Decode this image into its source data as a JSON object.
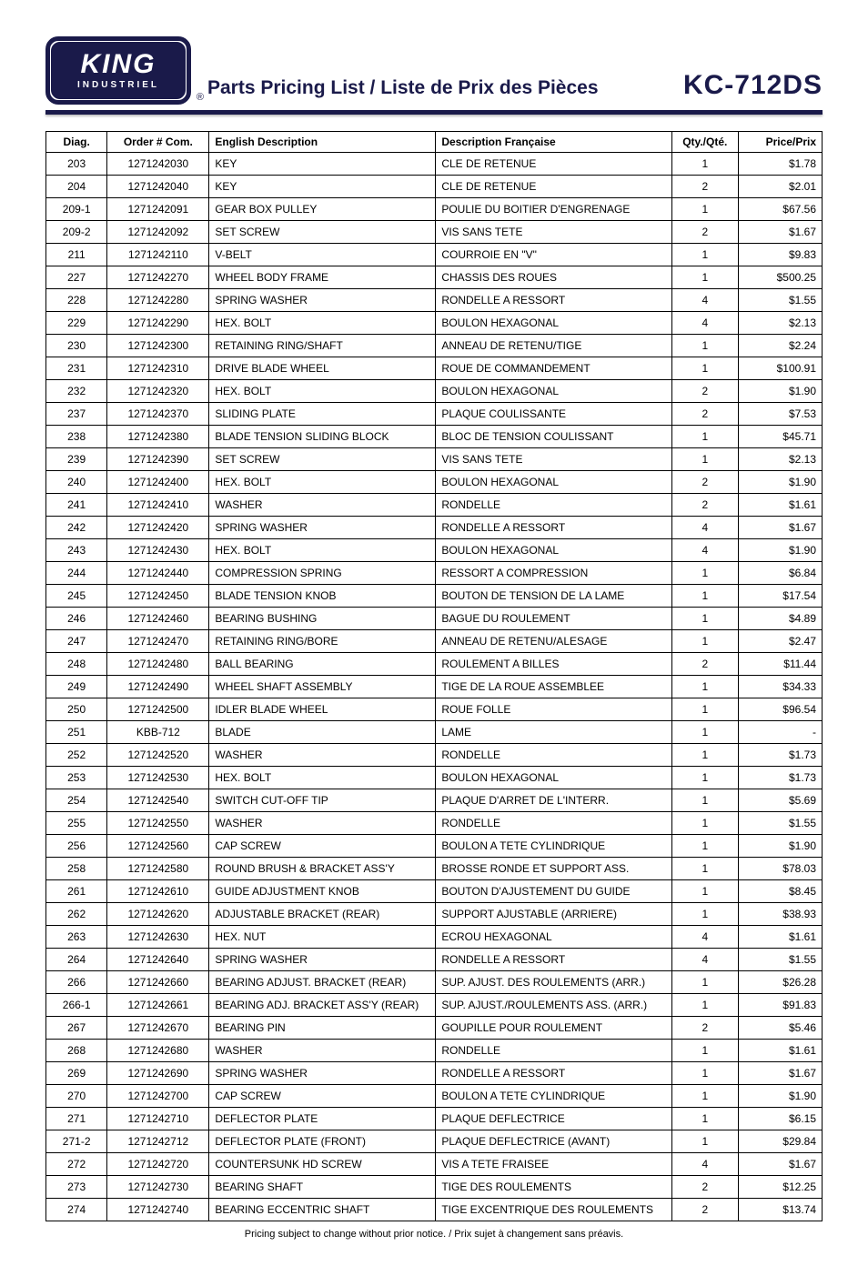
{
  "logo": {
    "brand": "KING",
    "sub": "INDUSTRIEL",
    "reg": "®"
  },
  "header": {
    "title": "Parts Pricing List / Liste de Prix des Pièces",
    "model": "KC-712DS"
  },
  "table": {
    "columns": {
      "diag": "Diag.",
      "order": "Order # Com.",
      "en": "English Description",
      "fr": "Description Française",
      "qty": "Qty./Qté.",
      "price": "Price/Prix"
    },
    "rows": [
      {
        "diag": "203",
        "order": "1271242030",
        "en": "KEY",
        "fr": "CLE DE RETENUE",
        "qty": "1",
        "price": "$1.78"
      },
      {
        "diag": "204",
        "order": "1271242040",
        "en": "KEY",
        "fr": "CLE DE RETENUE",
        "qty": "2",
        "price": "$2.01"
      },
      {
        "diag": "209-1",
        "order": "1271242091",
        "en": "GEAR BOX PULLEY",
        "fr": "POULIE DU BOITIER D'ENGRENAGE",
        "qty": "1",
        "price": "$67.56"
      },
      {
        "diag": "209-2",
        "order": "1271242092",
        "en": "SET SCREW",
        "fr": "VIS SANS TETE",
        "qty": "2",
        "price": "$1.67"
      },
      {
        "diag": "211",
        "order": "1271242110",
        "en": "V-BELT",
        "fr": "COURROIE EN \"V\"",
        "qty": "1",
        "price": "$9.83"
      },
      {
        "diag": "227",
        "order": "1271242270",
        "en": "WHEEL BODY FRAME",
        "fr": "CHASSIS DES ROUES",
        "qty": "1",
        "price": "$500.25"
      },
      {
        "diag": "228",
        "order": "1271242280",
        "en": "SPRING WASHER",
        "fr": "RONDELLE A RESSORT",
        "qty": "4",
        "price": "$1.55"
      },
      {
        "diag": "229",
        "order": "1271242290",
        "en": "HEX. BOLT",
        "fr": "BOULON HEXAGONAL",
        "qty": "4",
        "price": "$2.13"
      },
      {
        "diag": "230",
        "order": "1271242300",
        "en": "RETAINING RING/SHAFT",
        "fr": "ANNEAU DE RETENU/TIGE",
        "qty": "1",
        "price": "$2.24"
      },
      {
        "diag": "231",
        "order": "1271242310",
        "en": "DRIVE BLADE WHEEL",
        "fr": "ROUE DE COMMANDEMENT",
        "qty": "1",
        "price": "$100.91"
      },
      {
        "diag": "232",
        "order": "1271242320",
        "en": "HEX. BOLT",
        "fr": "BOULON HEXAGONAL",
        "qty": "2",
        "price": "$1.90"
      },
      {
        "diag": "237",
        "order": "1271242370",
        "en": "SLIDING PLATE",
        "fr": "PLAQUE COULISSANTE",
        "qty": "2",
        "price": "$7.53"
      },
      {
        "diag": "238",
        "order": "1271242380",
        "en": "BLADE TENSION SLIDING BLOCK",
        "fr": "BLOC DE TENSION COULISSANT",
        "qty": "1",
        "price": "$45.71"
      },
      {
        "diag": "239",
        "order": "1271242390",
        "en": "SET SCREW",
        "fr": "VIS SANS TETE",
        "qty": "1",
        "price": "$2.13"
      },
      {
        "diag": "240",
        "order": "1271242400",
        "en": "HEX. BOLT",
        "fr": "BOULON HEXAGONAL",
        "qty": "2",
        "price": "$1.90"
      },
      {
        "diag": "241",
        "order": "1271242410",
        "en": "WASHER",
        "fr": "RONDELLE",
        "qty": "2",
        "price": "$1.61"
      },
      {
        "diag": "242",
        "order": "1271242420",
        "en": "SPRING WASHER",
        "fr": "RONDELLE A RESSORT",
        "qty": "4",
        "price": "$1.67"
      },
      {
        "diag": "243",
        "order": "1271242430",
        "en": "HEX. BOLT",
        "fr": "BOULON HEXAGONAL",
        "qty": "4",
        "price": "$1.90"
      },
      {
        "diag": "244",
        "order": "1271242440",
        "en": "COMPRESSION SPRING",
        "fr": "RESSORT A COMPRESSION",
        "qty": "1",
        "price": "$6.84"
      },
      {
        "diag": "245",
        "order": "1271242450",
        "en": "BLADE TENSION KNOB",
        "fr": "BOUTON DE TENSION DE LA LAME",
        "qty": "1",
        "price": "$17.54"
      },
      {
        "diag": "246",
        "order": "1271242460",
        "en": "BEARING BUSHING",
        "fr": "BAGUE DU ROULEMENT",
        "qty": "1",
        "price": "$4.89"
      },
      {
        "diag": "247",
        "order": "1271242470",
        "en": "RETAINING RING/BORE",
        "fr": "ANNEAU DE RETENU/ALESAGE",
        "qty": "1",
        "price": "$2.47"
      },
      {
        "diag": "248",
        "order": "1271242480",
        "en": "BALL BEARING",
        "fr": "ROULEMENT A BILLES",
        "qty": "2",
        "price": "$11.44"
      },
      {
        "diag": "249",
        "order": "1271242490",
        "en": "WHEEL SHAFT ASSEMBLY",
        "fr": "TIGE DE LA ROUE ASSEMBLEE",
        "qty": "1",
        "price": "$34.33"
      },
      {
        "diag": "250",
        "order": "1271242500",
        "en": "IDLER BLADE WHEEL",
        "fr": "ROUE FOLLE",
        "qty": "1",
        "price": "$96.54"
      },
      {
        "diag": "251",
        "order": "KBB-712",
        "en": "BLADE",
        "fr": "LAME",
        "qty": "1",
        "price": "-"
      },
      {
        "diag": "252",
        "order": "1271242520",
        "en": "WASHER",
        "fr": "RONDELLE",
        "qty": "1",
        "price": "$1.73"
      },
      {
        "diag": "253",
        "order": "1271242530",
        "en": "HEX. BOLT",
        "fr": "BOULON HEXAGONAL",
        "qty": "1",
        "price": "$1.73"
      },
      {
        "diag": "254",
        "order": "1271242540",
        "en": "SWITCH CUT-OFF TIP",
        "fr": "PLAQUE D'ARRET DE L'INTERR.",
        "qty": "1",
        "price": "$5.69"
      },
      {
        "diag": "255",
        "order": "1271242550",
        "en": "WASHER",
        "fr": "RONDELLE",
        "qty": "1",
        "price": "$1.55"
      },
      {
        "diag": "256",
        "order": "1271242560",
        "en": "CAP SCREW",
        "fr": "BOULON A TETE CYLINDRIQUE",
        "qty": "1",
        "price": "$1.90"
      },
      {
        "diag": "258",
        "order": "1271242580",
        "en": "ROUND BRUSH & BRACKET ASS'Y",
        "fr": "BROSSE RONDE ET SUPPORT ASS.",
        "qty": "1",
        "price": "$78.03"
      },
      {
        "diag": "261",
        "order": "1271242610",
        "en": "GUIDE ADJUSTMENT KNOB",
        "fr": "BOUTON D'AJUSTEMENT DU GUIDE",
        "qty": "1",
        "price": "$8.45"
      },
      {
        "diag": "262",
        "order": "1271242620",
        "en": "ADJUSTABLE BRACKET (REAR)",
        "fr": "SUPPORT AJUSTABLE (ARRIERE)",
        "qty": "1",
        "price": "$38.93"
      },
      {
        "diag": "263",
        "order": "1271242630",
        "en": "HEX. NUT",
        "fr": "ECROU HEXAGONAL",
        "qty": "4",
        "price": "$1.61"
      },
      {
        "diag": "264",
        "order": "1271242640",
        "en": "SPRING WASHER",
        "fr": "RONDELLE A RESSORT",
        "qty": "4",
        "price": "$1.55"
      },
      {
        "diag": "266",
        "order": "1271242660",
        "en": "BEARING ADJUST. BRACKET (REAR)",
        "fr": "SUP. AJUST. DES ROULEMENTS (ARR.)",
        "qty": "1",
        "price": "$26.28"
      },
      {
        "diag": "266-1",
        "order": "1271242661",
        "en": "BEARING ADJ. BRACKET ASS'Y (REAR)",
        "fr": "SUP. AJUST./ROULEMENTS ASS. (ARR.)",
        "qty": "1",
        "price": "$91.83"
      },
      {
        "diag": "267",
        "order": "1271242670",
        "en": "BEARING PIN",
        "fr": "GOUPILLE POUR ROULEMENT",
        "qty": "2",
        "price": "$5.46"
      },
      {
        "diag": "268",
        "order": "1271242680",
        "en": "WASHER",
        "fr": "RONDELLE",
        "qty": "1",
        "price": "$1.61"
      },
      {
        "diag": "269",
        "order": "1271242690",
        "en": "SPRING WASHER",
        "fr": "RONDELLE A RESSORT",
        "qty": "1",
        "price": "$1.67"
      },
      {
        "diag": "270",
        "order": "1271242700",
        "en": "CAP SCREW",
        "fr": "BOULON A TETE CYLINDRIQUE",
        "qty": "1",
        "price": "$1.90"
      },
      {
        "diag": "271",
        "order": "1271242710",
        "en": "DEFLECTOR PLATE",
        "fr": "PLAQUE DEFLECTRICE",
        "qty": "1",
        "price": "$6.15"
      },
      {
        "diag": "271-2",
        "order": "1271242712",
        "en": "DEFLECTOR PLATE (FRONT)",
        "fr": "PLAQUE DEFLECTRICE (AVANT)",
        "qty": "1",
        "price": "$29.84"
      },
      {
        "diag": "272",
        "order": "1271242720",
        "en": "COUNTERSUNK HD SCREW",
        "fr": "VIS A TETE FRAISEE",
        "qty": "4",
        "price": "$1.67"
      },
      {
        "diag": "273",
        "order": "1271242730",
        "en": "BEARING SHAFT",
        "fr": "TIGE DES ROULEMENTS",
        "qty": "2",
        "price": "$12.25"
      },
      {
        "diag": "274",
        "order": "1271242740",
        "en": "BEARING ECCENTRIC SHAFT",
        "fr": "TIGE EXCENTRIQUE DES ROULEMENTS",
        "qty": "2",
        "price": "$13.74"
      }
    ]
  },
  "footnote": "Pricing subject to change without prior notice. / Prix sujet à changement sans préavis."
}
